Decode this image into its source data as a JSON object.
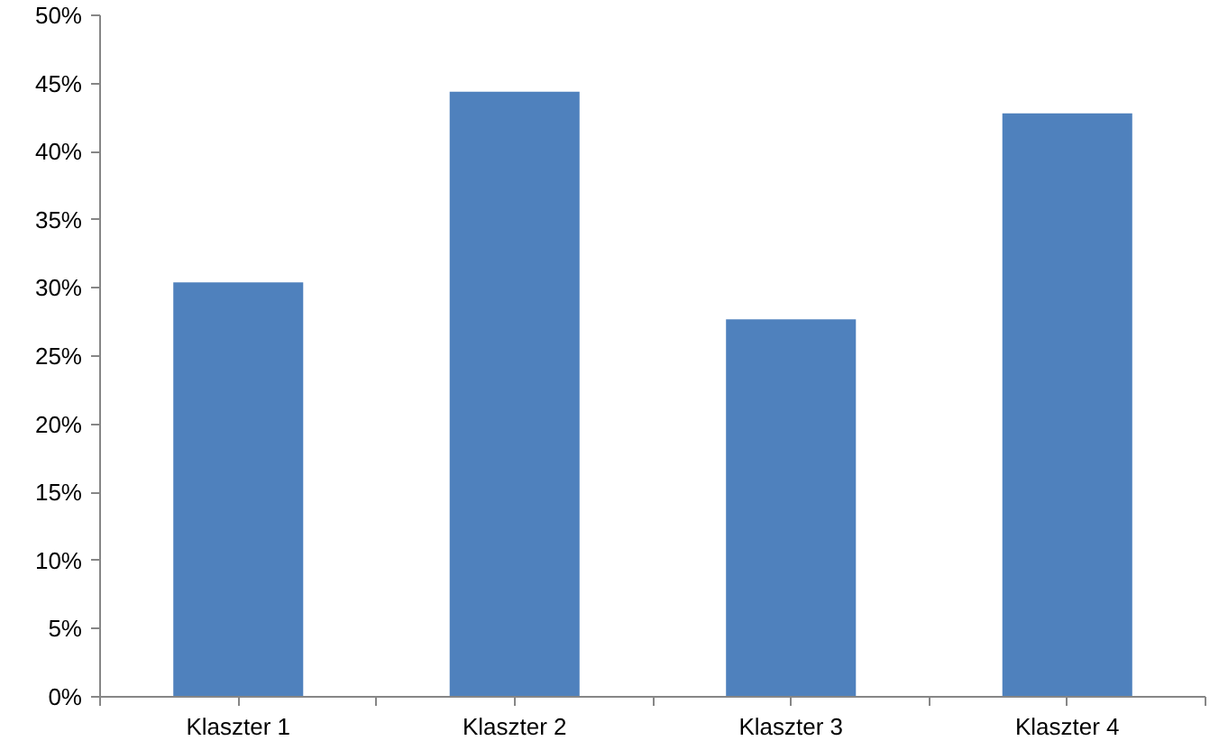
{
  "chart_data": {
    "type": "bar",
    "categories": [
      "Klaszter 1",
      "Klaszter 2",
      "Klaszter 3",
      "Klaszter 4"
    ],
    "values": [
      30.4,
      44.4,
      27.7,
      42.8
    ],
    "color": "#4f81bd",
    "ylim": [
      0,
      50
    ],
    "yticks": [
      {
        "value": 0,
        "label": "0%"
      },
      {
        "value": 5,
        "label": "5%"
      },
      {
        "value": 10,
        "label": "10%"
      },
      {
        "value": 15,
        "label": "15%"
      },
      {
        "value": 20,
        "label": "20%"
      },
      {
        "value": 25,
        "label": "25%"
      },
      {
        "value": 30,
        "label": "30%"
      },
      {
        "value": 35,
        "label": "35%"
      },
      {
        "value": 40,
        "label": "40%"
      },
      {
        "value": 45,
        "label": "45%"
      },
      {
        "value": 50,
        "label": "50%"
      }
    ],
    "grid": false
  }
}
